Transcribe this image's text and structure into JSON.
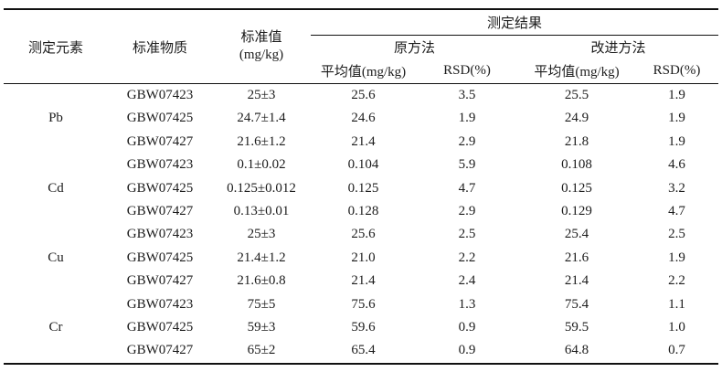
{
  "table": {
    "header": {
      "element": "测定元素",
      "material": "标准物质",
      "standard_value": "标准值\n(mg/kg)",
      "result_group": "测定结果",
      "original_method": "原方法",
      "improved_method": "改进方法",
      "mean": "平均值(mg/kg)",
      "rsd": "RSD(%)"
    },
    "groups": [
      {
        "element": "Pb",
        "rows": [
          {
            "material": "GBW07423",
            "standard": "25±3",
            "orig_mean": "25.6",
            "orig_rsd": "3.5",
            "new_mean": "25.5",
            "new_rsd": "1.9"
          },
          {
            "material": "GBW07425",
            "standard": "24.7±1.4",
            "orig_mean": "24.6",
            "orig_rsd": "1.9",
            "new_mean": "24.9",
            "new_rsd": "1.9"
          },
          {
            "material": "GBW07427",
            "standard": "21.6±1.2",
            "orig_mean": "21.4",
            "orig_rsd": "2.9",
            "new_mean": "21.8",
            "new_rsd": "1.9"
          }
        ]
      },
      {
        "element": "Cd",
        "rows": [
          {
            "material": "GBW07423",
            "standard": "0.1±0.02",
            "orig_mean": "0.104",
            "orig_rsd": "5.9",
            "new_mean": "0.108",
            "new_rsd": "4.6"
          },
          {
            "material": "GBW07425",
            "standard": "0.125±0.012",
            "orig_mean": "0.125",
            "orig_rsd": "4.7",
            "new_mean": "0.125",
            "new_rsd": "3.2"
          },
          {
            "material": "GBW07427",
            "standard": "0.13±0.01",
            "orig_mean": "0.128",
            "orig_rsd": "2.9",
            "new_mean": "0.129",
            "new_rsd": "4.7"
          }
        ]
      },
      {
        "element": "Cu",
        "rows": [
          {
            "material": "GBW07423",
            "standard": "25±3",
            "orig_mean": "25.6",
            "orig_rsd": "2.5",
            "new_mean": "25.4",
            "new_rsd": "2.5"
          },
          {
            "material": "GBW07425",
            "standard": "21.4±1.2",
            "orig_mean": "21.0",
            "orig_rsd": "2.2",
            "new_mean": "21.6",
            "new_rsd": "1.9"
          },
          {
            "material": "GBW07427",
            "standard": "21.6±0.8",
            "orig_mean": "21.4",
            "orig_rsd": "2.4",
            "new_mean": "21.4",
            "new_rsd": "2.2"
          }
        ]
      },
      {
        "element": "Cr",
        "rows": [
          {
            "material": "GBW07423",
            "standard": "75±5",
            "orig_mean": "75.6",
            "orig_rsd": "1.3",
            "new_mean": "75.4",
            "new_rsd": "1.1"
          },
          {
            "material": "GBW07425",
            "standard": "59±3",
            "orig_mean": "59.6",
            "orig_rsd": "0.9",
            "new_mean": "59.5",
            "new_rsd": "1.0"
          },
          {
            "material": "GBW07427",
            "standard": "65±2",
            "orig_mean": "65.4",
            "orig_rsd": "0.9",
            "new_mean": "64.8",
            "new_rsd": "0.7"
          }
        ]
      }
    ]
  }
}
